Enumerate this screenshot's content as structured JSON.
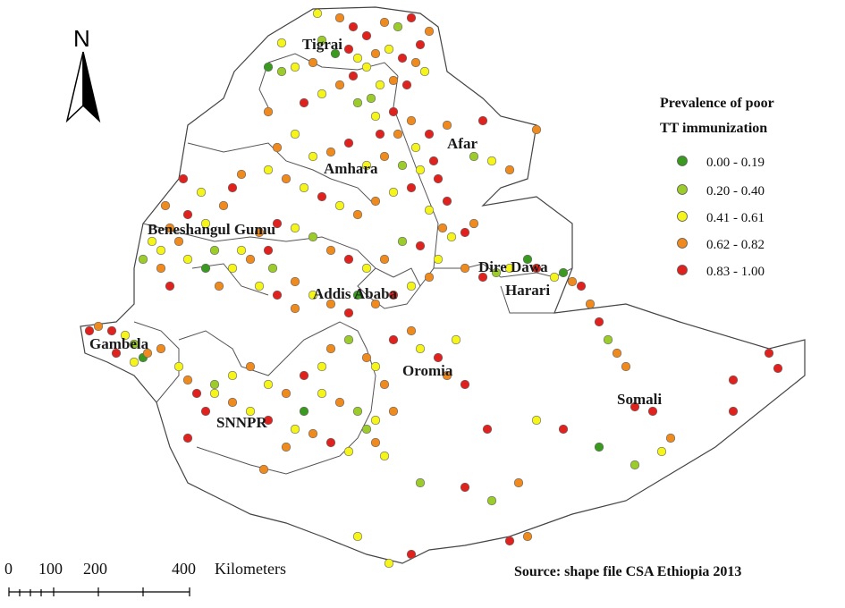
{
  "map": {
    "regions": [
      {
        "id": "tigray",
        "label": "Tigrai"
      },
      {
        "id": "afar",
        "label": "Afar"
      },
      {
        "id": "amhara",
        "label": "Amhara"
      },
      {
        "id": "benishangul",
        "label": "Beneshangul Gumu"
      },
      {
        "id": "dire-dawa",
        "label": "Dire Dawa"
      },
      {
        "id": "addis-ababa",
        "label": "Addis Ababa"
      },
      {
        "id": "harari",
        "label": "Harari"
      },
      {
        "id": "gambela",
        "label": "Gambela"
      },
      {
        "id": "oromia",
        "label": "Oromia"
      },
      {
        "id": "somali",
        "label": "Somali"
      },
      {
        "id": "snnpr",
        "label": "SNNPR"
      }
    ],
    "north_label": "N",
    "legend": {
      "title_line1": "Prevalence of poor",
      "title_line2": "TT immunization",
      "classes": [
        {
          "range": "0.00 - 0.19",
          "color": "#3a9a1f"
        },
        {
          "range": "0.20 - 0.40",
          "color": "#9ccc2b"
        },
        {
          "range": "0.41 - 0.61",
          "color": "#f5f51c"
        },
        {
          "range": "0.62 - 0.82",
          "color": "#ee8a1e"
        },
        {
          "range": "0.83 - 1.00",
          "color": "#e0221e"
        }
      ]
    },
    "scale_bar": {
      "ticks": [
        "0",
        "100",
        "200",
        "400"
      ],
      "unit": "Kilometers"
    },
    "source": "Source: shape file  CSA Ethiopia 2013"
  }
}
